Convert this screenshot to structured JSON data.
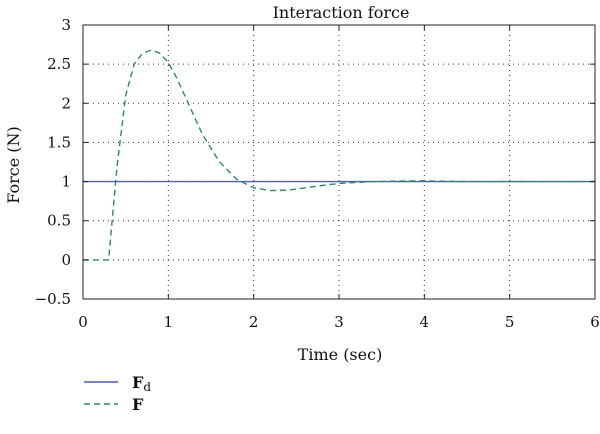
{
  "chart_data": {
    "type": "line",
    "title": "Interaction force",
    "xlabel": "Time (sec)",
    "ylabel": "Force (N)",
    "xlim": [
      0,
      6
    ],
    "ylim": [
      -0.5,
      3
    ],
    "x_ticks": [
      0,
      1,
      2,
      3,
      4,
      5,
      6
    ],
    "x_tick_labels": [
      "0",
      "1",
      "2",
      "3",
      "4",
      "5",
      "6"
    ],
    "y_ticks": [
      -0.5,
      0,
      0.5,
      1,
      1.5,
      2,
      2.5,
      3
    ],
    "y_tick_labels": [
      "−0.5",
      "0",
      "0.5",
      "1",
      "1.5",
      "2",
      "2.5",
      "3"
    ],
    "grid": true,
    "legend_position": "bottom-left",
    "series": [
      {
        "label_main": "F",
        "label_sub": "d",
        "style": "solid",
        "color": "#4a5fb5",
        "x": [
          0,
          6
        ],
        "y": [
          1,
          1
        ]
      },
      {
        "label_main": "F",
        "label_sub": "",
        "style": "dashed",
        "color": "#2e8b57",
        "x": [
          0,
          0.3,
          0.4,
          0.5,
          0.6,
          0.7,
          0.8,
          0.9,
          1.0,
          1.1,
          1.2,
          1.4,
          1.6,
          1.8,
          2.0,
          2.2,
          2.4,
          2.6,
          2.8,
          3.0,
          3.2,
          3.4,
          3.6,
          4.0,
          4.2,
          4.5,
          5.0,
          6.0
        ],
        "y": [
          0,
          0,
          1.2,
          2.1,
          2.5,
          2.64,
          2.68,
          2.64,
          2.52,
          2.32,
          2.08,
          1.6,
          1.25,
          1.03,
          0.92,
          0.885,
          0.89,
          0.92,
          0.95,
          0.975,
          0.99,
          1.0,
          1.005,
          1.01,
          1.005,
          1.0,
          1.0,
          1.0
        ]
      }
    ]
  }
}
